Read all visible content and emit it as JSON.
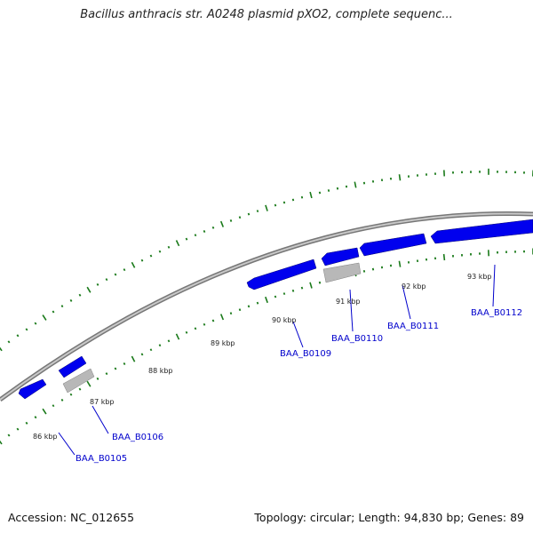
{
  "title": "Bacillus anthracis str. A0248 plasmid pXO2, complete sequenc...",
  "footer": {
    "accession": "Accession: NC_012655",
    "summary": "Topology: circular; Length: 94,830 bp; Genes: 89"
  },
  "colors": {
    "forward_gene": "#0000ee",
    "reverse_gene": "#b8b8b8",
    "backbone": "#8c8c8c",
    "tick": "#1a7a1a",
    "label": "#0000cc"
  },
  "kbp_labels": [
    "86 kbp",
    "87 kbp",
    "88 kbp",
    "89 kbp",
    "90 kbp",
    "91 kbp",
    "92 kbp",
    "93 kbp"
  ],
  "genes": [
    "BAA_B0105",
    "BAA_B0106",
    "BAA_B0109",
    "BAA_B0110",
    "BAA_B0111",
    "BAA_B0112"
  ]
}
